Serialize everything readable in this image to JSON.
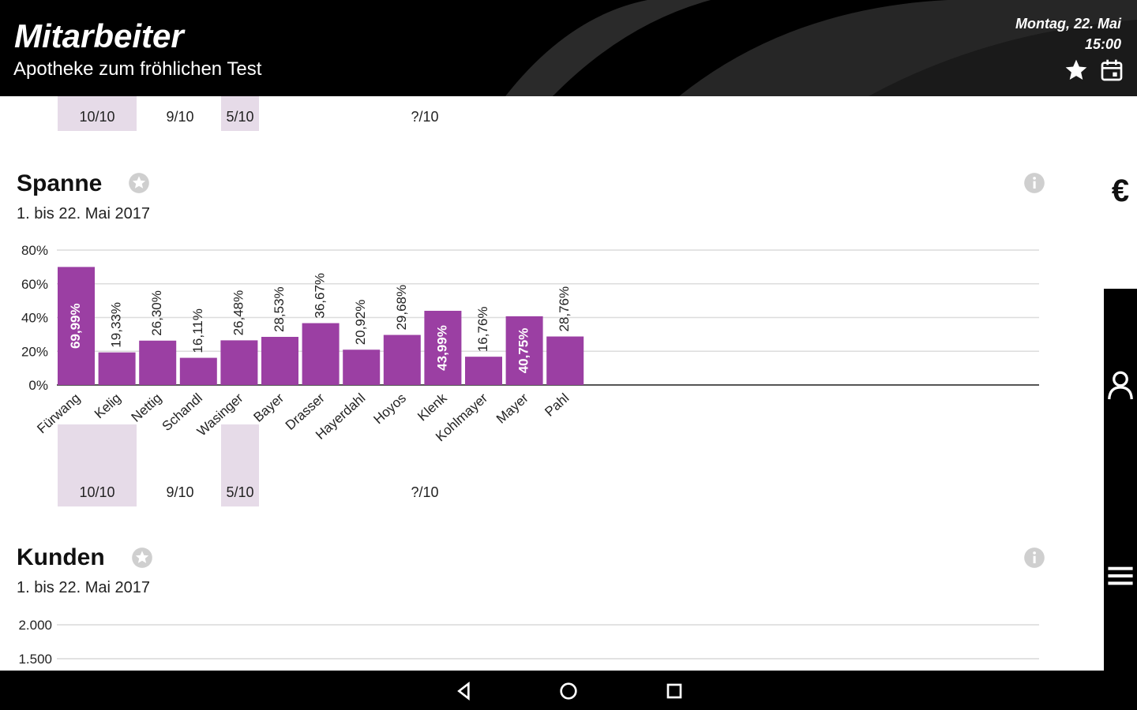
{
  "header": {
    "title": "Mitarbeiter",
    "subtitle": "Apotheke zum fröhlichen Test",
    "date": "Montag, 22. Mai",
    "time": "15:00",
    "icons": [
      "star-icon",
      "calendar-icon"
    ]
  },
  "top_scores": {
    "items": [
      {
        "label": "10/10",
        "highlight": true
      },
      {
        "label": "9/10",
        "highlight": false
      },
      {
        "label": "5/10",
        "highlight": true
      },
      {
        "label": "?/10",
        "highlight": false
      }
    ]
  },
  "spanne_card": {
    "title": "Spanne",
    "period": "1. bis 22. Mai 2017",
    "icons": [
      "star-outline-icon",
      "info-icon"
    ]
  },
  "chart_data": {
    "type": "bar",
    "title": "Spanne",
    "subtitle": "1. bis 22. Mai 2017",
    "xlabel": "",
    "ylabel": "",
    "ylim": [
      0,
      80
    ],
    "yticks": [
      "0%",
      "20%",
      "40%",
      "60%",
      "80%"
    ],
    "grid": true,
    "categories": [
      "Fürwang",
      "Kelig",
      "Nettig",
      "Schandl",
      "Wasinger",
      "Bayer",
      "Drasser",
      "Hayerdahl",
      "Hoyos",
      "Klenk",
      "Kohlmayer",
      "Mayer",
      "Pahl"
    ],
    "values": [
      69.99,
      19.33,
      26.3,
      16.11,
      26.48,
      28.53,
      36.67,
      20.92,
      29.68,
      43.99,
      16.76,
      40.75,
      28.76
    ],
    "value_labels": [
      "69,99%",
      "19,33%",
      "26,30%",
      "16,11%",
      "26,48%",
      "28,53%",
      "36,67%",
      "20,92%",
      "29,68%",
      "43,99%",
      "16,76%",
      "40,75%",
      "28,76%"
    ],
    "bar_color": "#9b3fa3"
  },
  "bottom_scores": {
    "items": [
      {
        "label": "10/10",
        "highlight": true
      },
      {
        "label": "9/10",
        "highlight": false
      },
      {
        "label": "5/10",
        "highlight": true
      },
      {
        "label": "?/10",
        "highlight": false
      }
    ]
  },
  "kunden_card": {
    "title": "Kunden",
    "period": "1. bis 22. Mai 2017",
    "yticks": [
      "2.000",
      "1.500"
    ],
    "icons": [
      "star-outline-icon",
      "info-icon"
    ]
  },
  "right_rail": {
    "currency_symbol": "€",
    "icons": [
      "euro-icon",
      "person-icon",
      "menu-icon"
    ]
  },
  "navbar": {
    "icons": [
      "back-icon",
      "home-icon",
      "recents-icon"
    ]
  },
  "colors": {
    "header_bg": "#000000",
    "accent": "#9b3fa3",
    "highlight_bg": "#e6dbe8"
  }
}
